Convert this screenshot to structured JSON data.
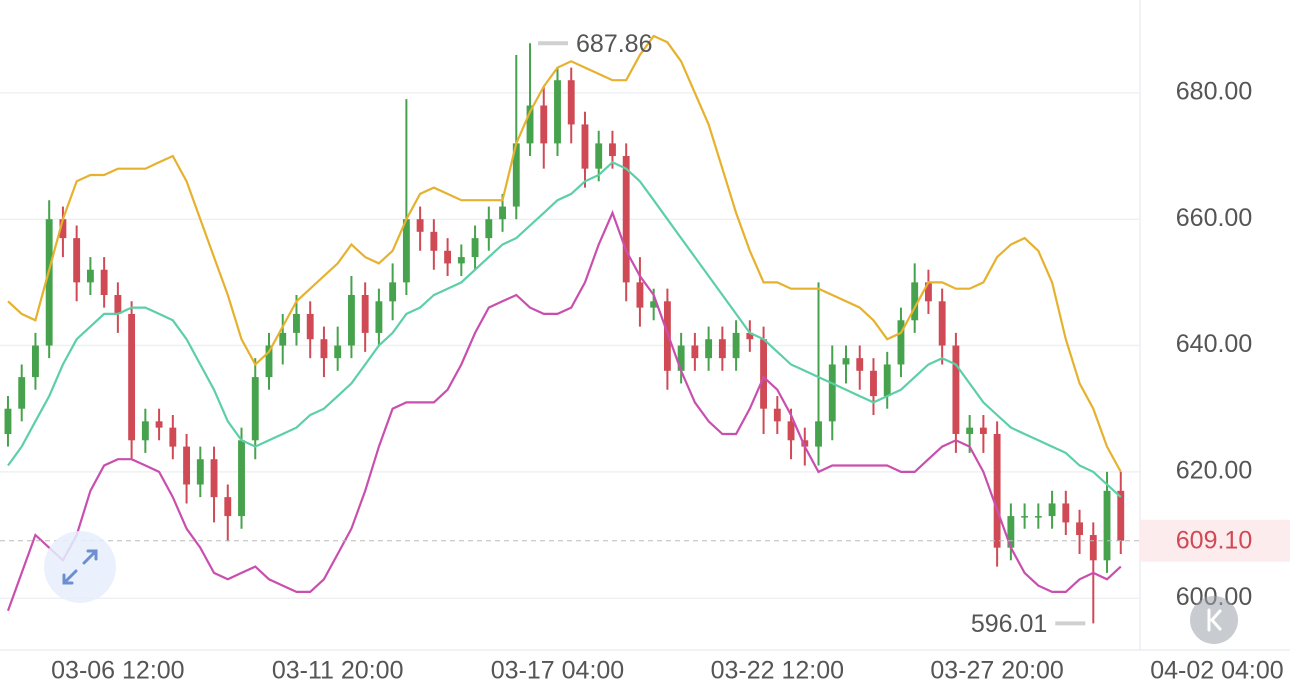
{
  "chart_data": {
    "type": "candlestick",
    "open": [
      626,
      630,
      635,
      640,
      660,
      657,
      650,
      652,
      648,
      645,
      625,
      628,
      627,
      624,
      618,
      622,
      616,
      613,
      625,
      635,
      640,
      642,
      645,
      641,
      638,
      640,
      648,
      642,
      647,
      650,
      660,
      658,
      655,
      653,
      654,
      657,
      660,
      662,
      672,
      678,
      672,
      682,
      675,
      668,
      672,
      670,
      650,
      646,
      647,
      636,
      640,
      638,
      641,
      638,
      642,
      641,
      630,
      628,
      625,
      624,
      628,
      637,
      638,
      636,
      632,
      637,
      644,
      650,
      647,
      640,
      626,
      627,
      626,
      608,
      613,
      613,
      613,
      615,
      612,
      610,
      606,
      617
    ],
    "high": [
      632,
      637,
      642,
      663,
      662,
      659,
      654,
      654,
      650,
      647,
      630,
      630,
      629,
      626,
      624,
      624,
      618,
      627,
      638,
      642,
      645,
      648,
      647,
      643,
      643,
      651,
      650,
      649,
      653,
      679,
      662,
      660,
      657,
      656,
      659,
      662,
      664,
      686,
      687.86,
      681,
      684,
      684,
      677,
      674,
      674,
      672,
      654,
      649,
      649,
      642,
      642,
      643,
      643,
      644,
      644,
      643,
      632,
      630,
      627,
      650,
      640,
      640,
      640,
      638,
      639,
      646,
      653,
      652,
      649,
      642,
      629,
      629,
      628,
      615,
      615,
      615,
      617,
      617,
      614,
      612,
      620,
      620
    ],
    "low": [
      624,
      628,
      633,
      638,
      654,
      647,
      648,
      646,
      642,
      622,
      623,
      625,
      622,
      615,
      616,
      612,
      609,
      611,
      622,
      633,
      637,
      640,
      638,
      635,
      636,
      638,
      639,
      640,
      644,
      648,
      655,
      652,
      651,
      651,
      652,
      655,
      658,
      660,
      670,
      668,
      670,
      672,
      665,
      666,
      668,
      647,
      643,
      644,
      633,
      634,
      636,
      636,
      636,
      636,
      639,
      626,
      626,
      622,
      621,
      621,
      625,
      634,
      633,
      629,
      630,
      635,
      642,
      645,
      637,
      623,
      623,
      623,
      605,
      606,
      611,
      611,
      611,
      610,
      607,
      596.01,
      604,
      607
    ],
    "close": [
      630,
      635,
      640,
      660,
      657,
      650,
      652,
      648,
      645,
      625,
      628,
      627,
      624,
      618,
      622,
      616,
      613,
      625,
      635,
      640,
      642,
      645,
      641,
      638,
      640,
      648,
      642,
      647,
      650,
      660,
      658,
      655,
      653,
      654,
      657,
      660,
      662,
      672,
      678,
      672,
      682,
      675,
      668,
      672,
      670,
      650,
      646,
      647,
      636,
      640,
      638,
      641,
      638,
      642,
      641,
      630,
      628,
      625,
      624,
      628,
      637,
      638,
      636,
      632,
      637,
      644,
      650,
      647,
      640,
      626,
      627,
      626,
      608,
      613,
      613,
      613,
      615,
      612,
      610,
      606,
      617,
      609.1
    ],
    "up_color": "#46a24c",
    "down_color": "#cf4a55",
    "bands": [
      {
        "color": "#e6b22e",
        "values": [
          647,
          645,
          644,
          652,
          660,
          666,
          667,
          667,
          668,
          668,
          668,
          669,
          670,
          666,
          660,
          654,
          648,
          641,
          637,
          639,
          643,
          647,
          649,
          651,
          653,
          656,
          654,
          653,
          655,
          660,
          664,
          665,
          664,
          663,
          663,
          663,
          663,
          672,
          677,
          681,
          684,
          685,
          684,
          683,
          682,
          682,
          686,
          689,
          688,
          685,
          680,
          675,
          668,
          661,
          655,
          650,
          650,
          649,
          649,
          649,
          648,
          647,
          646,
          644,
          641,
          642,
          646,
          650,
          650,
          649,
          649,
          650,
          654,
          656,
          657,
          655,
          650,
          641,
          634,
          630,
          624,
          620
        ]
      },
      {
        "color": "#5ccfa6",
        "values": [
          621,
          624,
          628,
          632,
          637,
          641,
          643,
          645,
          645,
          646,
          646,
          645,
          644,
          641,
          637,
          633,
          628,
          625,
          624,
          625,
          626,
          627,
          629,
          630,
          632,
          634,
          637,
          640,
          642,
          645,
          646,
          648,
          649,
          650,
          652,
          654,
          656,
          657,
          659,
          661,
          663,
          664,
          666,
          667,
          669,
          668,
          666,
          663,
          660,
          657,
          654,
          651,
          648,
          645,
          642,
          641,
          639,
          637,
          636,
          635,
          634,
          633,
          632,
          631,
          632,
          633,
          635,
          637,
          638,
          637,
          634,
          631,
          629,
          627,
          626,
          625,
          624,
          623,
          621,
          620,
          618,
          616
        ]
      },
      {
        "color": "#c94fae",
        "values": [
          598,
          604,
          610,
          608,
          606,
          610,
          617,
          621,
          622,
          622,
          621,
          620,
          616,
          611,
          608,
          604,
          603,
          604,
          605,
          603,
          602,
          601,
          601,
          603,
          607,
          611,
          617,
          624,
          630,
          631,
          631,
          631,
          633,
          637,
          642,
          646,
          647,
          648,
          646,
          645,
          645,
          646,
          650,
          656,
          661,
          655,
          651,
          648,
          642,
          636,
          631,
          628,
          626,
          626,
          630,
          635,
          633,
          629,
          624,
          620,
          621,
          621,
          621,
          621,
          621,
          620,
          620,
          622,
          624,
          625,
          624,
          620,
          614,
          608,
          604,
          602,
          601,
          601,
          603,
          604,
          603,
          605
        ]
      }
    ],
    "ylim": [
      591.8,
      694.7
    ],
    "yticks": [
      {
        "value": 600,
        "label": "600.00"
      },
      {
        "value": 620,
        "label": "620.00"
      },
      {
        "value": 640,
        "label": "640.00"
      },
      {
        "value": 660,
        "label": "660.00"
      },
      {
        "value": 680,
        "label": "680.00"
      }
    ],
    "xlim": [
      -0.58,
      82.4
    ],
    "xticks": [
      {
        "value": 8,
        "label": "03-06 12:00"
      },
      {
        "value": 24,
        "label": "03-11 20:00"
      },
      {
        "value": 40,
        "label": "03-17 04:00"
      },
      {
        "value": 56,
        "label": "03-22 12:00"
      },
      {
        "value": 72,
        "label": "03-27 20:00"
      },
      {
        "value": 88,
        "label": "04-02 04:00"
      }
    ],
    "grid": true,
    "max_label": 687.86,
    "min_label": 596.01,
    "last_price": {
      "value": 609.1,
      "label": "609.10"
    }
  }
}
